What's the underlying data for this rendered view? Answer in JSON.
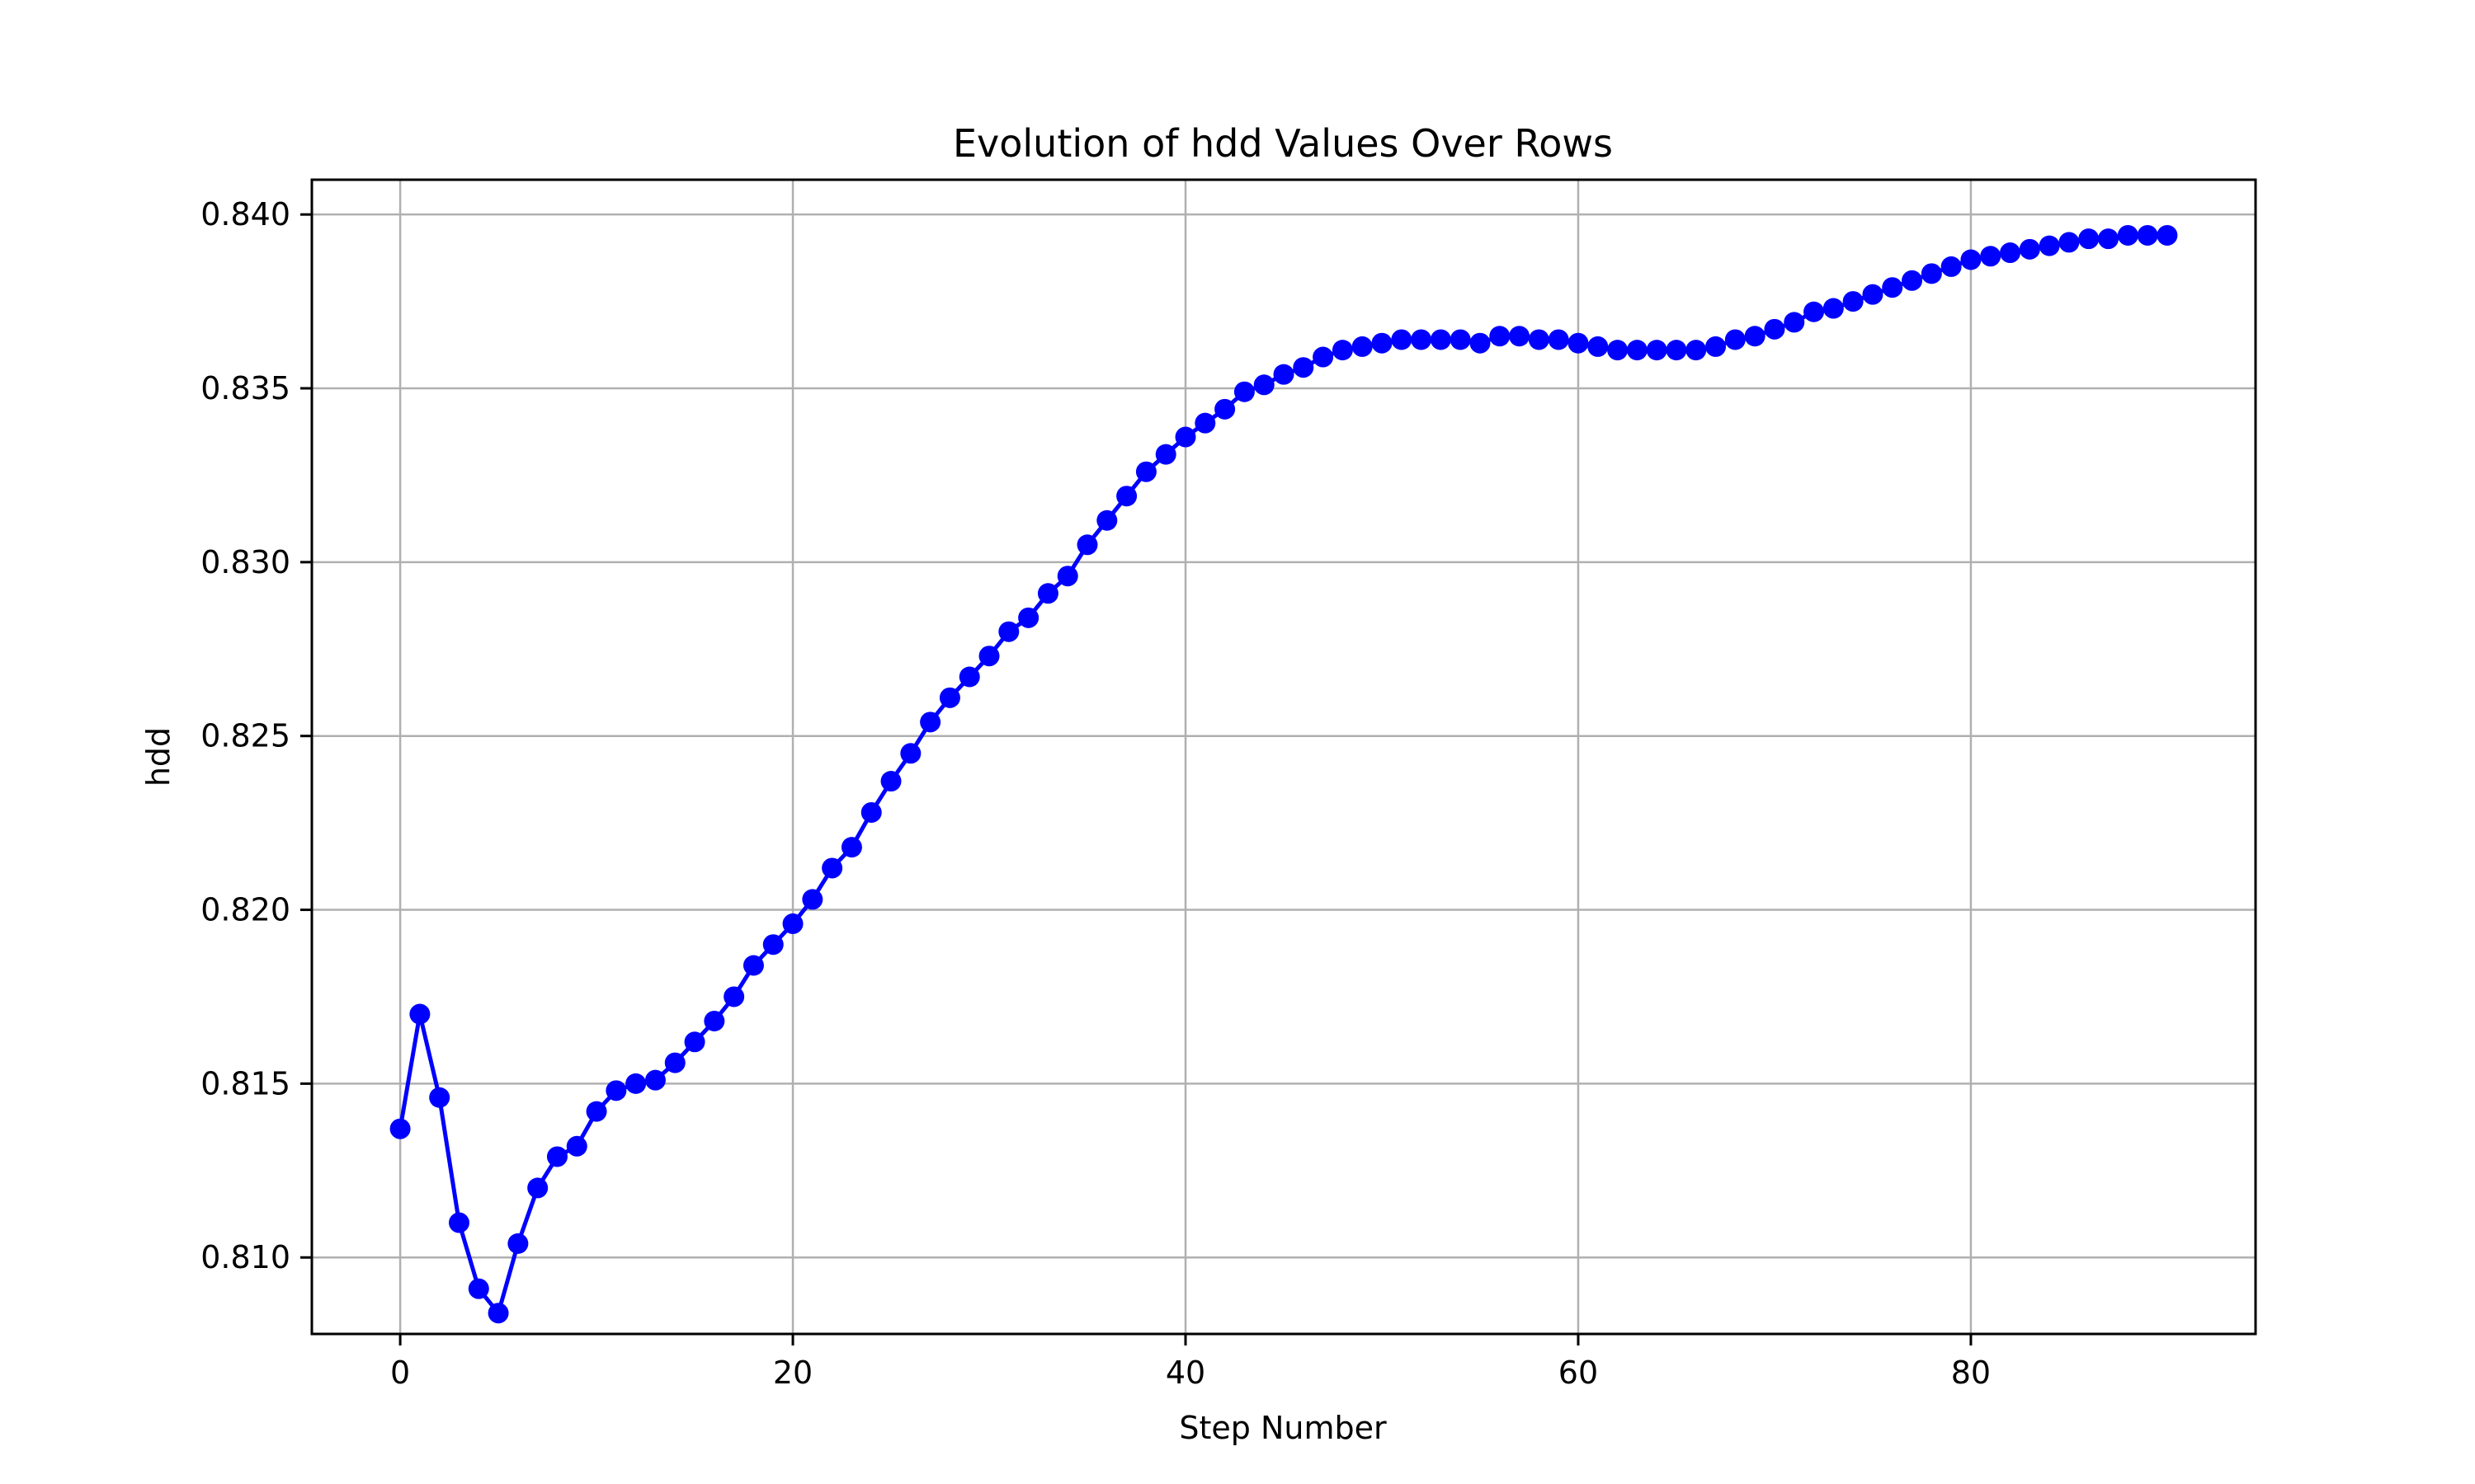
{
  "chart_data": {
    "type": "line",
    "title": "Evolution of hdd Values Over Rows",
    "xlabel": "Step Number",
    "ylabel": "hdd",
    "xlim": [
      -4.5,
      94.5
    ],
    "ylim": [
      0.8078,
      0.841
    ],
    "xticks": [
      0,
      20,
      40,
      60,
      80
    ],
    "yticks": [
      0.81,
      0.815,
      0.82,
      0.825,
      0.83,
      0.835,
      0.84
    ],
    "xtick_labels": [
      "0",
      "20",
      "40",
      "60",
      "80"
    ],
    "ytick_labels": [
      "0.810",
      "0.815",
      "0.820",
      "0.825",
      "0.830",
      "0.835",
      "0.840"
    ],
    "grid": true,
    "series_color": "#0000ff",
    "marker": "circle",
    "x": [
      0,
      1,
      2,
      3,
      4,
      5,
      6,
      7,
      8,
      9,
      10,
      11,
      12,
      13,
      14,
      15,
      16,
      17,
      18,
      19,
      20,
      21,
      22,
      23,
      24,
      25,
      26,
      27,
      28,
      29,
      30,
      31,
      32,
      33,
      34,
      35,
      36,
      37,
      38,
      39,
      40,
      41,
      42,
      43,
      44,
      45,
      46,
      47,
      48,
      49,
      50,
      51,
      52,
      53,
      54,
      55,
      56,
      57,
      58,
      59,
      60,
      61,
      62,
      63,
      64,
      65,
      66,
      67,
      68,
      69,
      70,
      71,
      72,
      73,
      74,
      75,
      76,
      77,
      78,
      79,
      80,
      81,
      82,
      83,
      84,
      85,
      86,
      87,
      88,
      89,
      90
    ],
    "y": [
      0.8137,
      0.817,
      0.8146,
      0.811,
      0.8091,
      0.8084,
      0.8104,
      0.812,
      0.8129,
      0.8132,
      0.8142,
      0.8148,
      0.815,
      0.8151,
      0.8156,
      0.8162,
      0.8168,
      0.8175,
      0.8184,
      0.819,
      0.8196,
      0.8203,
      0.8212,
      0.8218,
      0.8228,
      0.8237,
      0.8245,
      0.8254,
      0.8261,
      0.8267,
      0.8273,
      0.828,
      0.8284,
      0.8291,
      0.8296,
      0.8305,
      0.8312,
      0.8319,
      0.8326,
      0.8331,
      0.8336,
      0.834,
      0.8344,
      0.8349,
      0.8351,
      0.8354,
      0.8356,
      0.8359,
      0.8361,
      0.8362,
      0.8363,
      0.8364,
      0.8364,
      0.8364,
      0.8364,
      0.8363,
      0.8365,
      0.8365,
      0.8364,
      0.8364,
      0.8363,
      0.8362,
      0.8361,
      0.8361,
      0.8361,
      0.8361,
      0.8361,
      0.8362,
      0.8364,
      0.8365,
      0.8367,
      0.8369,
      0.8372,
      0.8373,
      0.8375,
      0.8377,
      0.8379,
      0.8381,
      0.8383,
      0.8385,
      0.8387,
      0.8388,
      0.8389,
      0.839,
      0.8391,
      0.8392,
      0.8393,
      0.8393,
      0.8394,
      0.8394,
      0.8394
    ]
  }
}
